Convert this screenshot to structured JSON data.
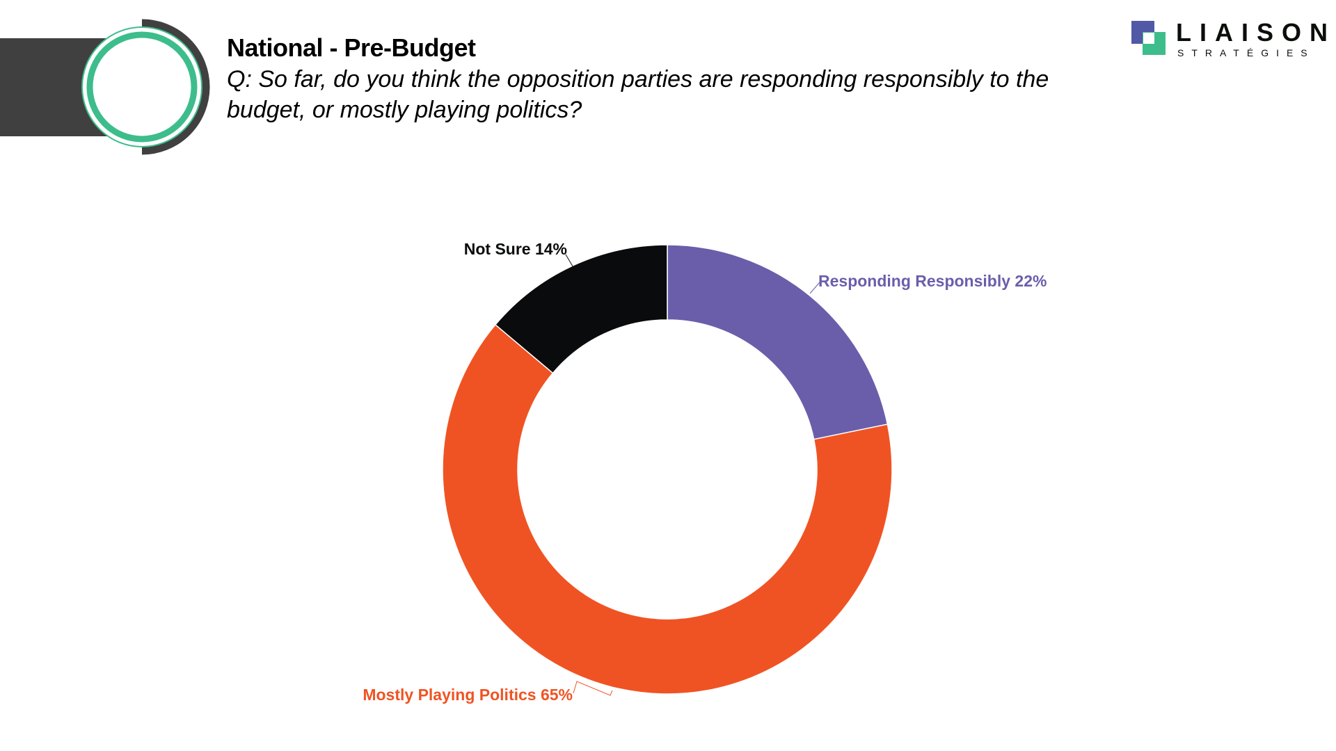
{
  "header": {
    "title": "National - Pre-Budget",
    "question": "Q: So far, do you think the opposition parties are responding responsibly to the budget, or mostly playing politics?"
  },
  "logo": {
    "name": "LIAISON",
    "sub": "STRATÉGIES"
  },
  "colors": {
    "accent_green": "#3dbd8b",
    "dark": "#404040",
    "brand_blue": "#5158a6"
  },
  "chart_data": {
    "type": "pie",
    "variant": "donut",
    "start": "top-clockwise",
    "slices": [
      {
        "label": "Responding Responsibly",
        "value": 22,
        "display": "Responding Responsibly 22%",
        "color": "#6a5eab"
      },
      {
        "label": "Mostly Playing Politics",
        "value": 65,
        "display": "Mostly Playing Politics 65%",
        "color": "#f05323"
      },
      {
        "label": "Not Sure",
        "value": 14,
        "display": "Not Sure 14%",
        "color": "#0a0b0d"
      }
    ]
  }
}
